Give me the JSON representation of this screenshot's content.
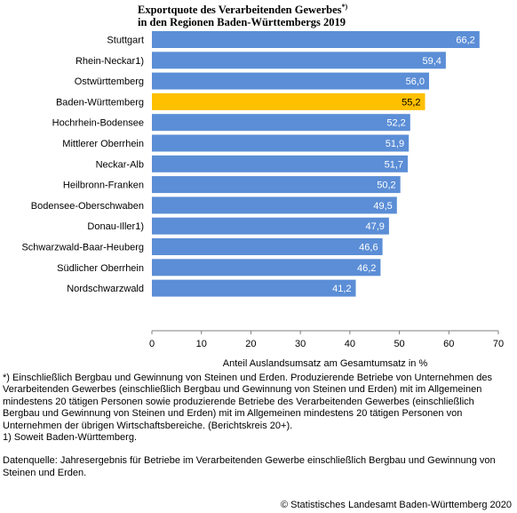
{
  "title": {
    "line1": "Exportquote des Verarbeitenden Gewerbes",
    "line1_marker": "*)",
    "line2": "in den Regionen Baden-Württembergs 2019"
  },
  "chart_data": {
    "type": "bar",
    "orientation": "horizontal",
    "categories": [
      "Stuttgart",
      "Rhein-Neckar1)",
      "Ostwürttemberg",
      "Baden-Württemberg",
      "Hochrhein-Bodensee",
      "Mittlerer Oberrhein",
      "Neckar-Alb",
      "Heilbronn-Franken",
      "Bodensee-Oberschwaben",
      "Donau-Iller1)",
      "Schwarzwald-Baar-Heuberg",
      "Südlicher Oberrhein",
      "Nordschwarzwald"
    ],
    "values": [
      66.2,
      59.4,
      56.0,
      55.2,
      52.2,
      51.9,
      51.7,
      50.2,
      49.5,
      47.9,
      46.6,
      46.2,
      41.2
    ],
    "value_labels": [
      "66,2",
      "59,4",
      "56,0",
      "55,2",
      "52,2",
      "51,9",
      "51,7",
      "50,2",
      "49,5",
      "47,9",
      "46,6",
      "46,2",
      "41,2"
    ],
    "highlight_index": 3,
    "xlabel": "Anteil Auslandsumsatz am Gesamtumsatz in %",
    "xlim": [
      0,
      70
    ],
    "xticks": [
      0,
      10,
      20,
      30,
      40,
      50,
      60,
      70
    ],
    "grid": false,
    "colors": {
      "bar": "#5b8ed6",
      "highlight": "#ffc000",
      "label_on_bar": "#ffffff",
      "label_on_highlight": "#000000",
      "axis": "#7f7f7f"
    }
  },
  "footnotes": {
    "note_star": "*) Einschließlich Bergbau und Gewinnung von Steinen und Erden. Produzierende Betriebe von Unternehmen des Verarbeitenden Gewerbes (einschließlich Bergbau und Gewinnung von Steinen und Erden) mit im Allgemeinen mindestens 20 tätigen Personen sowie produzierende Betriebe des Verarbeitenden Gewerbes (einschließlich Bergbau und Gewinnung von Steinen und Erden) mit im Allgemeinen mindestens 20 tätigen Personen von Unternehmen der übrigen Wirtschaftsbereiche. (Berichtskreis 20+).",
    "note_1": "1) Soweit Baden-Württemberg.",
    "source": "Datenquelle: Jahresergebnis für Betriebe im Verarbeitenden Gewerbe einschließlich Bergbau und Gewinnung von Steinen und Erden."
  },
  "copyright": "© Statistisches Landesamt Baden-Württemberg 2020"
}
